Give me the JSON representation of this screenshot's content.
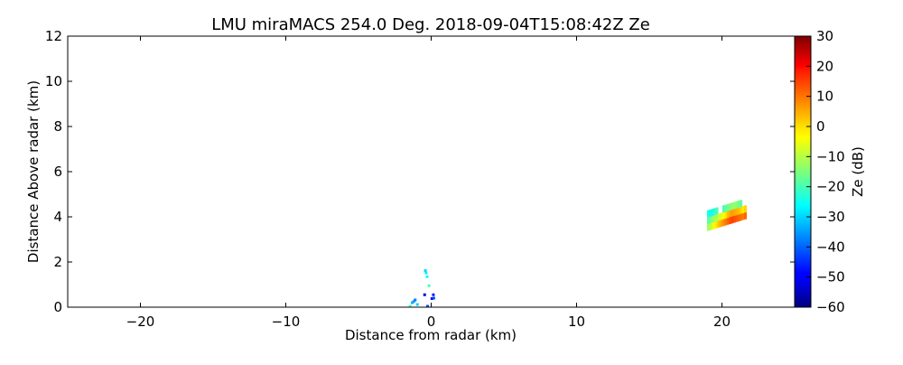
{
  "chart_data": {
    "type": "heatmap",
    "title": "LMU miraMACS 254.0 Deg. 2018-09-04T15:08:42Z  Ze",
    "xlabel": "Distance from radar (km)",
    "ylabel": "Distance Above radar  (km)",
    "xlim": [
      -25,
      25
    ],
    "ylim": [
      0,
      12
    ],
    "xticks": [
      -20,
      -10,
      0,
      10,
      20
    ],
    "xtick_labels": [
      "−20",
      "−10",
      "0",
      "10",
      "20"
    ],
    "yticks": [
      0,
      2,
      4,
      6,
      8,
      10,
      12
    ],
    "ytick_labels": [
      "0",
      "2",
      "4",
      "6",
      "8",
      "10",
      "12"
    ],
    "grid": false,
    "colorbar": {
      "label": "Ze (dB)",
      "colormap": "jet",
      "range": [
        -60,
        30
      ],
      "ticks": [
        30,
        20,
        10,
        0,
        -10,
        -20,
        -30,
        -40,
        -50,
        -60
      ],
      "tick_labels": [
        "30",
        "20",
        "10",
        "0",
        "−10",
        "−20",
        "−30",
        "−40",
        "−50",
        "−60"
      ]
    },
    "columns_note": "each column: [x_km, bottom_km, ze_low, ze_mid, ze_top] (null = no echo)",
    "columns": [
      [
        19.05,
        3.4,
        -12,
        -18,
        -24
      ],
      [
        19.2,
        3.43,
        -10,
        -16,
        -25
      ],
      [
        19.35,
        3.46,
        -6,
        -14,
        -24
      ],
      [
        19.5,
        3.49,
        -3,
        -12,
        -22
      ],
      [
        19.65,
        3.52,
        -1,
        -10,
        -20
      ],
      [
        19.8,
        3.55,
        2,
        -8,
        null
      ],
      [
        19.95,
        3.58,
        4,
        -6,
        null
      ],
      [
        20.1,
        3.61,
        6,
        -4,
        -20
      ],
      [
        20.25,
        3.64,
        8,
        -2,
        -18
      ],
      [
        20.4,
        3.67,
        10,
        2,
        -16
      ],
      [
        20.55,
        3.7,
        12,
        4,
        -15
      ],
      [
        20.7,
        3.73,
        13,
        5,
        -14
      ],
      [
        20.85,
        3.76,
        12,
        4,
        -13
      ],
      [
        21.0,
        3.79,
        11,
        3,
        -14
      ],
      [
        21.15,
        3.82,
        10,
        2,
        -16
      ],
      [
        21.3,
        3.85,
        9,
        0,
        -18
      ],
      [
        21.45,
        3.88,
        8,
        -2,
        null
      ],
      [
        21.6,
        3.91,
        10,
        0,
        null
      ]
    ],
    "points_note": "isolated echoes: [x_km, y_km, ze]",
    "points": [
      [
        -0.4,
        1.62,
        -30
      ],
      [
        -0.35,
        1.52,
        -28
      ],
      [
        -0.28,
        1.35,
        -26
      ],
      [
        -0.15,
        0.95,
        -20
      ],
      [
        -0.45,
        0.55,
        -50
      ],
      [
        0.15,
        0.55,
        -46
      ],
      [
        0.05,
        0.38,
        -48
      ],
      [
        0.18,
        0.4,
        -42
      ],
      [
        -1.2,
        0.25,
        -35
      ],
      [
        -1.1,
        0.32,
        -38
      ],
      [
        -1.3,
        0.2,
        -33
      ],
      [
        -0.95,
        0.12,
        -30
      ],
      [
        -0.25,
        0.04,
        -42
      ],
      [
        -1.45,
        0.04,
        -20
      ]
    ]
  }
}
